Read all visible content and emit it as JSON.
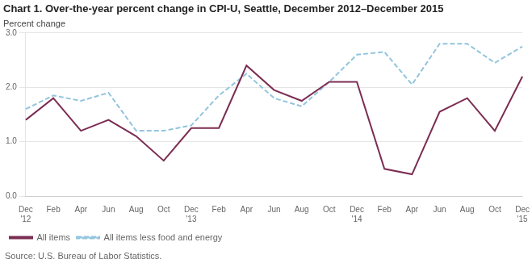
{
  "chart_data": {
    "type": "line",
    "title": "Chart 1. Over-the-year percent change in CPI-U, Seattle, December 2012–December 2015",
    "y_label": "Percent change",
    "source": "Source: U.S. Bureau of Labor Statistics.",
    "categories": [
      "Dec\n'12",
      "Feb",
      "Apr",
      "Jun",
      "Aug",
      "Oct",
      "Dec\n'13",
      "Feb",
      "Apr",
      "Jun",
      "Aug",
      "Oct",
      "Dec\n'14",
      "Feb",
      "Apr",
      "Jun",
      "Aug",
      "Oct",
      "Dec\n'15"
    ],
    "series": [
      {
        "name": "All items",
        "color": "#7B2D52",
        "line_style": "solid",
        "values": [
          1.4,
          1.8,
          1.2,
          1.4,
          1.1,
          0.65,
          1.25,
          1.25,
          2.4,
          1.95,
          1.75,
          2.1,
          2.1,
          0.5,
          0.4,
          1.55,
          1.8,
          1.2,
          2.2
        ]
      },
      {
        "name": "All items less food and energy",
        "color": "#92C5DE",
        "line_style": "dashed",
        "values": [
          1.6,
          1.85,
          1.75,
          1.9,
          1.2,
          1.2,
          1.3,
          1.85,
          2.25,
          1.8,
          1.65,
          2.1,
          2.6,
          2.65,
          2.05,
          2.8,
          2.8,
          2.45,
          2.75
        ]
      }
    ],
    "ylim": [
      0.0,
      3.0
    ],
    "yticks": [
      {
        "value": 0.0,
        "label": "0.0"
      },
      {
        "value": 1.0,
        "label": "1.0"
      },
      {
        "value": 2.0,
        "label": "2.0"
      },
      {
        "value": 3.0,
        "label": "3.0"
      }
    ],
    "grid": true,
    "legend": "lower left"
  }
}
